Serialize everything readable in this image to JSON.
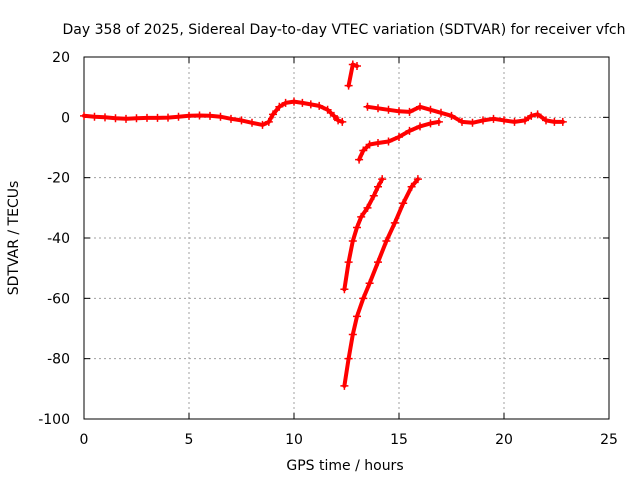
{
  "chart_data": {
    "type": "scatter",
    "title": "Day 358 of 2025, Sidereal Day-to-day VTEC variation (SDTVAR) for receiver vfch",
    "xlabel": "GPS time / hours",
    "ylabel": "SDTVAR / TECUs",
    "xlim": [
      0,
      25
    ],
    "ylim": [
      -100,
      20
    ],
    "xticks": [
      0,
      5,
      10,
      15,
      20,
      25
    ],
    "yticks": [
      -100,
      -80,
      -60,
      -40,
      -20,
      0,
      20
    ],
    "grid": true,
    "marker": "plus",
    "color": "#ff0000",
    "series": [
      {
        "x": [
          0.0,
          0.5,
          1.0,
          1.5,
          2.0,
          2.5,
          3.0,
          3.5,
          4.0,
          4.5,
          5.0,
          5.5,
          6.0,
          6.5,
          7.0,
          7.5,
          8.0,
          8.5,
          8.8,
          9.0,
          9.3,
          9.6,
          10.0,
          10.4,
          10.8,
          11.2,
          11.6,
          11.9,
          12.1,
          12.3
        ],
        "y": [
          0.5,
          0.2,
          0.0,
          -0.3,
          -0.5,
          -0.3,
          -0.2,
          -0.2,
          -0.1,
          0.2,
          0.5,
          0.6,
          0.5,
          0.2,
          -0.5,
          -1.0,
          -1.8,
          -2.5,
          -1.5,
          1.0,
          3.5,
          4.8,
          5.2,
          4.8,
          4.3,
          3.8,
          2.5,
          0.5,
          -1.0,
          -1.5
        ]
      },
      {
        "x": [
          12.6,
          12.8,
          13.0
        ],
        "y": [
          10.5,
          17.5,
          17.0
        ]
      },
      {
        "x": [
          13.5,
          14.0,
          14.5,
          15.0,
          15.5,
          16.0,
          16.5,
          17.0,
          17.5,
          18.0,
          18.5,
          19.0,
          19.5,
          20.0,
          20.5,
          21.0,
          21.3,
          21.6,
          22.0,
          22.4,
          22.8
        ],
        "y": [
          3.5,
          3.0,
          2.5,
          2.0,
          1.8,
          3.5,
          2.5,
          1.5,
          0.5,
          -1.5,
          -1.8,
          -1.0,
          -0.5,
          -1.0,
          -1.5,
          -1.0,
          0.5,
          1.0,
          -1.0,
          -1.5,
          -1.5
        ]
      },
      {
        "x": [
          13.1,
          13.3,
          13.6,
          14.0,
          14.5,
          15.0,
          15.5,
          16.0,
          16.5,
          16.9
        ],
        "y": [
          -14.0,
          -11.0,
          -9.0,
          -8.5,
          -8.0,
          -6.5,
          -4.5,
          -3.0,
          -2.0,
          -1.5
        ]
      },
      {
        "x": [
          12.4,
          12.6,
          12.8,
          13.0,
          13.2,
          13.5,
          13.8,
          14.0,
          14.2
        ],
        "y": [
          -57.0,
          -48.0,
          -41.0,
          -36.5,
          -33.0,
          -30.0,
          -26.0,
          -23.0,
          -20.5
        ]
      },
      {
        "x": [
          12.4,
          12.6,
          12.8,
          13.0,
          13.3,
          13.6,
          14.0,
          14.4,
          14.8,
          15.2,
          15.6,
          15.9
        ],
        "y": [
          -89.0,
          -80.0,
          -72.0,
          -66.0,
          -60.0,
          -55.0,
          -48.0,
          -41.0,
          -35.0,
          -28.5,
          -23.0,
          -20.5
        ]
      }
    ]
  }
}
